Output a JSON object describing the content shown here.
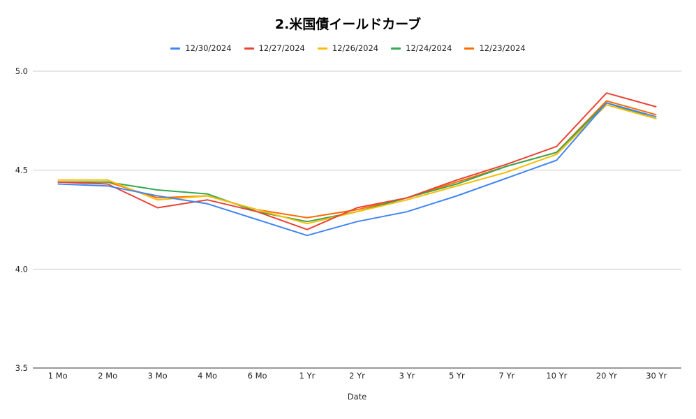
{
  "chart_data": {
    "type": "line",
    "title": "2.米国債イールドカーブ",
    "xlabel": "Date",
    "ylabel": "",
    "categories": [
      "1 Mo",
      "2 Mo",
      "3 Mo",
      "4 Mo",
      "6 Mo",
      "1 Yr",
      "2 Yr",
      "3 Yr",
      "5 Yr",
      "7 Yr",
      "10 Yr",
      "20 Yr",
      "30 Yr"
    ],
    "ylim": [
      3.5,
      5.0
    ],
    "yticks": [
      "3.5",
      "4.0",
      "4.5",
      "5.0"
    ],
    "grid": true,
    "legend_position": "top",
    "series": [
      {
        "name": "12/30/2024",
        "color": "#4285F4",
        "values": [
          4.43,
          4.42,
          4.37,
          4.33,
          4.25,
          4.17,
          4.24,
          4.29,
          4.37,
          4.46,
          4.55,
          4.84,
          4.77
        ]
      },
      {
        "name": "12/27/2024",
        "color": "#EA4335",
        "values": [
          4.44,
          4.43,
          4.31,
          4.35,
          4.29,
          4.2,
          4.31,
          4.36,
          4.45,
          4.53,
          4.62,
          4.89,
          4.82
        ]
      },
      {
        "name": "12/26/2024",
        "color": "#FBBC04",
        "values": [
          4.45,
          4.45,
          4.35,
          4.37,
          4.3,
          4.23,
          4.29,
          4.35,
          4.42,
          4.49,
          4.58,
          4.83,
          4.76
        ]
      },
      {
        "name": "12/24/2024",
        "color": "#34A853",
        "values": [
          4.44,
          4.44,
          4.4,
          4.38,
          4.29,
          4.24,
          4.29,
          4.36,
          4.43,
          4.52,
          4.59,
          4.84,
          4.76
        ]
      },
      {
        "name": "12/23/2024",
        "color": "#FF6D01",
        "values": [
          4.44,
          4.44,
          4.36,
          4.37,
          4.3,
          4.26,
          4.3,
          4.36,
          4.44,
          4.52,
          4.59,
          4.85,
          4.78
        ]
      }
    ]
  }
}
